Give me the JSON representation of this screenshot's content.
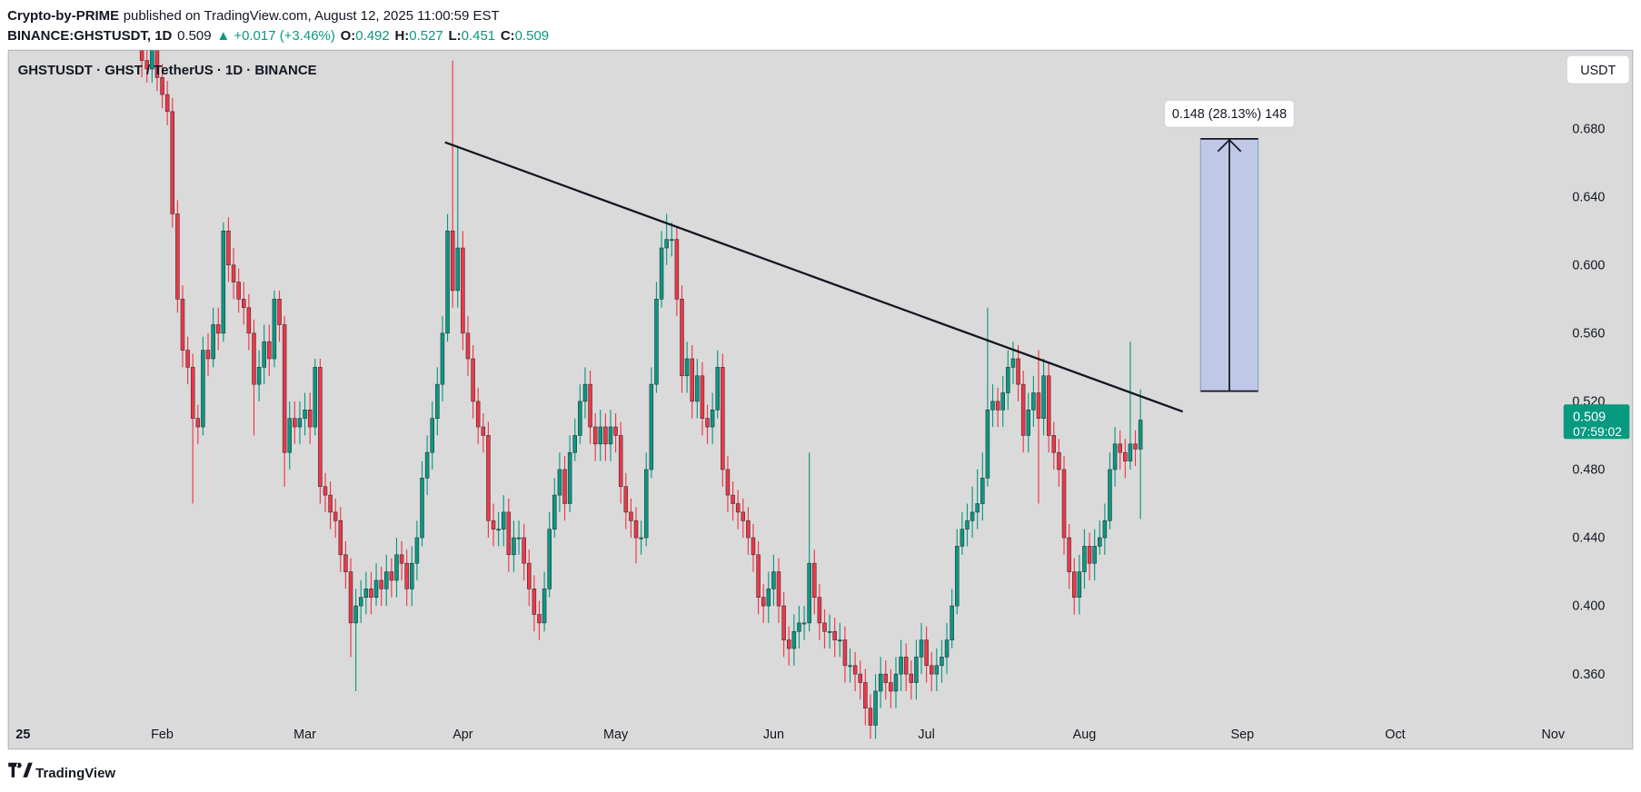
{
  "header": {
    "author": "Crypto-by-PRIME",
    "published": "published on TradingView.com, August 12, 2025 11:00:59 EST",
    "symbol": "BINANCE:GHSTUSDT, 1D",
    "last": "0.509",
    "change": "▲ +0.017 (+3.46%)",
    "ohlc": [
      {
        "label": "O:",
        "value": "0.492"
      },
      {
        "label": "H:",
        "value": "0.527"
      },
      {
        "label": "L:",
        "value": "0.451"
      },
      {
        "label": "C:",
        "value": "0.509"
      }
    ]
  },
  "chart_data": {
    "type": "candlestick",
    "title": "GHSTUSDT · GHST / TetherUS · 1D · BINANCE",
    "currency": "USDT",
    "up_color": "#089981",
    "down_color": "#f23645",
    "grid": false,
    "ylim": [
      0.316,
      0.726
    ],
    "yticks": [
      {
        "value": 0.36,
        "label": "0.360"
      },
      {
        "value": 0.4,
        "label": "0.400"
      },
      {
        "value": 0.44,
        "label": "0.440"
      },
      {
        "value": 0.48,
        "label": "0.480"
      },
      {
        "value": 0.52,
        "label": "0.520"
      },
      {
        "value": 0.56,
        "label": "0.560"
      },
      {
        "value": 0.6,
        "label": "0.600"
      },
      {
        "value": 0.64,
        "label": "0.640"
      },
      {
        "value": 0.68,
        "label": "0.680"
      }
    ],
    "xlim": [
      -26.2,
      292.6
    ],
    "xticks": [
      {
        "value": -25,
        "label": "25"
      },
      {
        "value": 4,
        "label": "Feb"
      },
      {
        "value": 32,
        "label": "Mar"
      },
      {
        "value": 63,
        "label": "Apr"
      },
      {
        "value": 93,
        "label": "May"
      },
      {
        "value": 124,
        "label": "Jun"
      },
      {
        "value": 154,
        "label": "Jul"
      },
      {
        "value": 185,
        "label": "Aug"
      },
      {
        "value": 216,
        "label": "Sep"
      },
      {
        "value": 246,
        "label": "Oct"
      },
      {
        "value": 277,
        "label": "Nov"
      }
    ],
    "open": [
      0.73,
      0.72,
      0.715,
      0.73,
      0.71,
      0.7,
      0.69,
      0.63,
      0.58,
      0.55,
      0.54,
      0.51,
      0.505,
      0.55,
      0.545,
      0.565,
      0.56,
      0.62,
      0.6,
      0.59,
      0.58,
      0.575,
      0.56,
      0.53,
      0.54,
      0.555,
      0.545,
      0.58,
      0.565,
      0.49,
      0.51,
      0.505,
      0.51,
      0.515,
      0.505,
      0.54,
      0.47,
      0.465,
      0.455,
      0.45,
      0.43,
      0.42,
      0.39,
      0.4,
      0.405,
      0.41,
      0.405,
      0.415,
      0.41,
      0.42,
      0.415,
      0.43,
      0.425,
      0.41,
      0.425,
      0.44,
      0.475,
      0.49,
      0.51,
      0.53,
      0.56,
      0.62,
      0.585,
      0.61,
      0.56,
      0.545,
      0.52,
      0.505,
      0.5,
      0.45,
      0.445,
      0.445,
      0.455,
      0.43,
      0.44,
      0.44,
      0.425,
      0.41,
      0.395,
      0.39,
      0.41,
      0.445,
      0.465,
      0.48,
      0.46,
      0.49,
      0.5,
      0.52,
      0.53,
      0.505,
      0.495,
      0.505,
      0.495,
      0.505,
      0.5,
      0.47,
      0.455,
      0.45,
      0.44,
      0.44,
      0.48,
      0.53,
      0.58,
      0.61,
      0.615,
      0.615,
      0.58,
      0.535,
      0.545,
      0.52,
      0.535,
      0.51,
      0.505,
      0.515,
      0.54,
      0.48,
      0.465,
      0.46,
      0.455,
      0.45,
      0.44,
      0.43,
      0.405,
      0.4,
      0.41,
      0.42,
      0.4,
      0.38,
      0.375,
      0.385,
      0.39,
      0.39,
      0.425,
      0.405,
      0.39,
      0.385,
      0.385,
      0.38,
      0.38,
      0.365,
      0.365,
      0.36,
      0.355,
      0.34,
      0.33,
      0.35,
      0.36,
      0.355,
      0.35,
      0.36,
      0.37,
      0.36,
      0.355,
      0.37,
      0.38,
      0.365,
      0.36,
      0.365,
      0.37,
      0.38,
      0.4,
      0.435,
      0.445,
      0.45,
      0.455,
      0.46,
      0.475,
      0.515,
      0.52,
      0.515,
      0.525,
      0.54,
      0.545,
      0.53,
      0.5,
      0.515,
      0.525,
      0.51,
      0.535,
      0.5,
      0.49,
      0.48,
      0.44,
      0.42,
      0.405,
      0.42,
      0.435,
      0.425,
      0.435,
      0.44,
      0.45,
      0.48,
      0.495,
      0.49,
      0.485,
      0.495,
      0.492
    ],
    "high": [
      0.74,
      0.728,
      0.738,
      0.738,
      0.718,
      0.708,
      0.698,
      0.638,
      0.588,
      0.558,
      0.548,
      0.518,
      0.558,
      0.56,
      0.575,
      0.575,
      0.625,
      0.628,
      0.61,
      0.598,
      0.59,
      0.583,
      0.568,
      0.55,
      0.565,
      0.565,
      0.585,
      0.585,
      0.57,
      0.52,
      0.52,
      0.52,
      0.525,
      0.525,
      0.545,
      0.545,
      0.478,
      0.473,
      0.463,
      0.458,
      0.438,
      0.428,
      0.41,
      0.415,
      0.42,
      0.42,
      0.425,
      0.423,
      0.43,
      0.428,
      0.44,
      0.438,
      0.433,
      0.435,
      0.45,
      0.485,
      0.5,
      0.52,
      0.54,
      0.57,
      0.63,
      0.72,
      0.67,
      0.62,
      0.57,
      0.553,
      0.528,
      0.513,
      0.508,
      0.46,
      0.455,
      0.465,
      0.463,
      0.45,
      0.45,
      0.448,
      0.433,
      0.418,
      0.403,
      0.42,
      0.455,
      0.475,
      0.49,
      0.488,
      0.5,
      0.51,
      0.53,
      0.54,
      0.538,
      0.513,
      0.515,
      0.513,
      0.515,
      0.513,
      0.508,
      0.478,
      0.463,
      0.458,
      0.45,
      0.49,
      0.54,
      0.59,
      0.62,
      0.63,
      0.625,
      0.623,
      0.588,
      0.555,
      0.553,
      0.545,
      0.543,
      0.518,
      0.525,
      0.55,
      0.548,
      0.488,
      0.473,
      0.468,
      0.463,
      0.458,
      0.448,
      0.438,
      0.413,
      0.42,
      0.43,
      0.428,
      0.408,
      0.388,
      0.395,
      0.4,
      0.4,
      0.49,
      0.433,
      0.413,
      0.398,
      0.395,
      0.393,
      0.39,
      0.388,
      0.375,
      0.373,
      0.368,
      0.363,
      0.348,
      0.36,
      0.37,
      0.368,
      0.363,
      0.37,
      0.38,
      0.378,
      0.368,
      0.38,
      0.39,
      0.388,
      0.373,
      0.375,
      0.38,
      0.39,
      0.41,
      0.445,
      0.455,
      0.46,
      0.47,
      0.48,
      0.49,
      0.575,
      0.53,
      0.528,
      0.535,
      0.55,
      0.555,
      0.553,
      0.538,
      0.525,
      0.535,
      0.55,
      0.545,
      0.543,
      0.508,
      0.498,
      0.488,
      0.448,
      0.428,
      0.43,
      0.445,
      0.443,
      0.445,
      0.45,
      0.46,
      0.49,
      0.505,
      0.503,
      0.498,
      0.555,
      0.503,
      0.527
    ],
    "low": [
      0.71,
      0.707,
      0.707,
      0.702,
      0.692,
      0.682,
      0.622,
      0.572,
      0.54,
      0.53,
      0.46,
      0.495,
      0.5,
      0.535,
      0.54,
      0.55,
      0.555,
      0.59,
      0.58,
      0.572,
      0.565,
      0.55,
      0.5,
      0.52,
      0.53,
      0.535,
      0.54,
      0.555,
      0.47,
      0.48,
      0.495,
      0.495,
      0.5,
      0.495,
      0.5,
      0.46,
      0.455,
      0.445,
      0.44,
      0.42,
      0.41,
      0.37,
      0.35,
      0.39,
      0.395,
      0.395,
      0.4,
      0.4,
      0.4,
      0.405,
      0.405,
      0.415,
      0.4,
      0.4,
      0.415,
      0.435,
      0.465,
      0.48,
      0.5,
      0.52,
      0.555,
      0.575,
      0.575,
      0.55,
      0.535,
      0.51,
      0.495,
      0.49,
      0.44,
      0.435,
      0.435,
      0.435,
      0.42,
      0.42,
      0.43,
      0.415,
      0.4,
      0.385,
      0.38,
      0.385,
      0.405,
      0.44,
      0.455,
      0.45,
      0.455,
      0.485,
      0.495,
      0.51,
      0.495,
      0.485,
      0.485,
      0.485,
      0.485,
      0.49,
      0.46,
      0.445,
      0.44,
      0.425,
      0.43,
      0.435,
      0.475,
      0.525,
      0.575,
      0.6,
      0.605,
      0.57,
      0.525,
      0.525,
      0.51,
      0.51,
      0.5,
      0.495,
      0.495,
      0.51,
      0.47,
      0.455,
      0.45,
      0.445,
      0.44,
      0.43,
      0.42,
      0.395,
      0.39,
      0.39,
      0.4,
      0.39,
      0.37,
      0.365,
      0.365,
      0.375,
      0.38,
      0.385,
      0.395,
      0.38,
      0.375,
      0.375,
      0.37,
      0.37,
      0.355,
      0.355,
      0.35,
      0.345,
      0.33,
      0.322,
      0.322,
      0.34,
      0.345,
      0.34,
      0.34,
      0.35,
      0.35,
      0.345,
      0.345,
      0.36,
      0.355,
      0.35,
      0.35,
      0.355,
      0.36,
      0.375,
      0.395,
      0.43,
      0.435,
      0.44,
      0.445,
      0.45,
      0.47,
      0.505,
      0.505,
      0.505,
      0.515,
      0.53,
      0.52,
      0.49,
      0.49,
      0.505,
      0.46,
      0.5,
      0.49,
      0.48,
      0.47,
      0.43,
      0.41,
      0.395,
      0.395,
      0.41,
      0.415,
      0.415,
      0.43,
      0.43,
      0.445,
      0.47,
      0.48,
      0.475,
      0.48,
      0.482,
      0.451
    ],
    "close": [
      0.72,
      0.715,
      0.73,
      0.71,
      0.7,
      0.69,
      0.63,
      0.58,
      0.55,
      0.54,
      0.51,
      0.505,
      0.55,
      0.545,
      0.565,
      0.56,
      0.62,
      0.6,
      0.59,
      0.58,
      0.575,
      0.56,
      0.53,
      0.54,
      0.555,
      0.545,
      0.58,
      0.565,
      0.49,
      0.51,
      0.505,
      0.51,
      0.515,
      0.505,
      0.54,
      0.47,
      0.465,
      0.455,
      0.45,
      0.43,
      0.42,
      0.39,
      0.4,
      0.405,
      0.41,
      0.405,
      0.415,
      0.41,
      0.42,
      0.415,
      0.43,
      0.425,
      0.41,
      0.425,
      0.44,
      0.475,
      0.49,
      0.51,
      0.53,
      0.56,
      0.62,
      0.585,
      0.61,
      0.56,
      0.545,
      0.52,
      0.505,
      0.5,
      0.45,
      0.445,
      0.445,
      0.455,
      0.43,
      0.44,
      0.44,
      0.425,
      0.41,
      0.395,
      0.39,
      0.41,
      0.445,
      0.465,
      0.48,
      0.46,
      0.49,
      0.5,
      0.52,
      0.53,
      0.505,
      0.495,
      0.505,
      0.495,
      0.505,
      0.5,
      0.47,
      0.455,
      0.45,
      0.44,
      0.44,
      0.48,
      0.53,
      0.58,
      0.61,
      0.615,
      0.615,
      0.58,
      0.535,
      0.545,
      0.52,
      0.535,
      0.51,
      0.505,
      0.515,
      0.54,
      0.48,
      0.465,
      0.46,
      0.455,
      0.45,
      0.44,
      0.43,
      0.405,
      0.4,
      0.41,
      0.42,
      0.4,
      0.38,
      0.375,
      0.385,
      0.39,
      0.39,
      0.425,
      0.405,
      0.39,
      0.385,
      0.385,
      0.38,
      0.38,
      0.365,
      0.365,
      0.36,
      0.355,
      0.34,
      0.33,
      0.35,
      0.36,
      0.355,
      0.35,
      0.36,
      0.37,
      0.36,
      0.355,
      0.37,
      0.38,
      0.365,
      0.36,
      0.365,
      0.37,
      0.38,
      0.4,
      0.435,
      0.445,
      0.45,
      0.455,
      0.46,
      0.475,
      0.515,
      0.52,
      0.515,
      0.525,
      0.54,
      0.545,
      0.53,
      0.5,
      0.515,
      0.525,
      0.51,
      0.535,
      0.5,
      0.49,
      0.48,
      0.44,
      0.42,
      0.405,
      0.42,
      0.435,
      0.425,
      0.435,
      0.44,
      0.45,
      0.48,
      0.495,
      0.49,
      0.485,
      0.495,
      0.492,
      0.509
    ],
    "last_price": {
      "value": 0.509,
      "label": "0.509"
    },
    "countdown": "07:59:02",
    "trendline": {
      "x": [
        59.5,
        204.3
      ],
      "y": [
        0.672,
        0.514
      ]
    },
    "measure": {
      "x": [
        207.8,
        219.1
      ],
      "y": [
        0.526,
        0.674
      ],
      "label": "0.148 (28.13%) 148"
    }
  },
  "footer": {
    "logo": "TradingView"
  }
}
